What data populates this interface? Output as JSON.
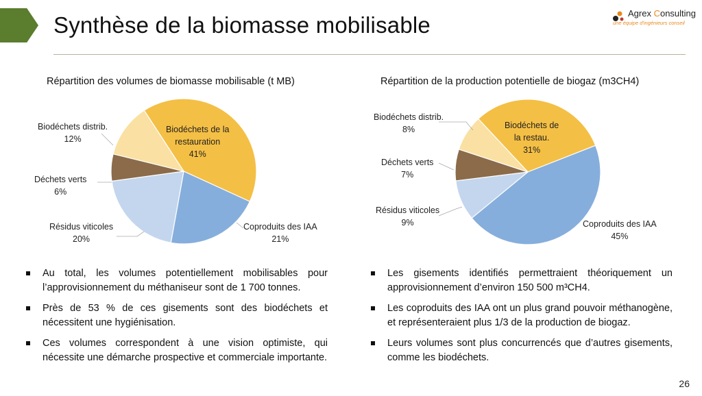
{
  "slide": {
    "title": "Synthèse de la biomasse mobilisable",
    "page_number": "26",
    "logo": {
      "brand_a": "Agrex ",
      "brand_b": "C",
      "brand_c": "onsulting",
      "tagline": "une équipe d'ingénieurs conseil"
    },
    "accent_color": "#5a7d2e"
  },
  "left_chart_labels": [
    {
      "name": "Biodéchets de la",
      "name2": "restauration",
      "pct": "41%"
    },
    {
      "name": "Coproduits des IAA",
      "pct": "21%"
    },
    {
      "name": "Résidus viticoles",
      "pct": "20%"
    },
    {
      "name": "Déchets verts",
      "pct": "6%"
    },
    {
      "name": "Biodéchets distrib.",
      "pct": "12%"
    }
  ],
  "right_chart_labels": [
    {
      "name": "Biodéchets de",
      "name2": "la restau.",
      "pct": "31%"
    },
    {
      "name": "Coproduits des IAA",
      "pct": "45%"
    },
    {
      "name": "Résidus viticoles",
      "pct": "9%"
    },
    {
      "name": "Déchets verts",
      "pct": "7%"
    },
    {
      "name": "Biodéchets distrib.",
      "pct": "8%"
    }
  ],
  "chart_data": [
    {
      "type": "pie",
      "title": "Répartition des volumes de biomasse mobilisable (t MB)",
      "categories": [
        "Biodéchets de la restauration",
        "Coproduits des IAA",
        "Résidus viticoles",
        "Déchets verts",
        "Biodéchets distrib."
      ],
      "values": [
        41,
        21,
        20,
        6,
        12
      ],
      "colors": [
        "#f4bf45",
        "#86aedc",
        "#c3d6ee",
        "#8b6b4a",
        "#fae0a2"
      ]
    },
    {
      "type": "pie",
      "title": "Répartition de la production potentielle de biogaz (m3CH4)",
      "categories": [
        "Biodéchets de la restau.",
        "Coproduits des IAA",
        "Résidus viticoles",
        "Déchets verts",
        "Biodéchets distrib."
      ],
      "values": [
        31,
        45,
        9,
        7,
        8
      ],
      "colors": [
        "#f4bf45",
        "#86aedc",
        "#c3d6ee",
        "#8b6b4a",
        "#fae0a2"
      ]
    }
  ],
  "left_bullets": [
    {
      "pre": "Au total, les volumes potentiellement mobilisables pour l’approvisionnement du méthaniseur sont de ",
      "hl": "1 700 tonnes",
      "post": "."
    },
    {
      "pre": " Près de 53 % de ces gisements sont des biodéchets et nécessitent une ",
      "hl": "hygiénisation",
      "post": "."
    },
    {
      "pre": "Ces volumes correspondent à une vision optimiste, qui nécessite une démarche prospective et commerciale importante.",
      "hl": "",
      "post": ""
    }
  ],
  "right_bullets": [
    {
      "pre": "Les gisements identifiés permettraient théoriquement un approvisionnement d’environ ",
      "hl": "150 500 m³CH4",
      "post": "."
    },
    {
      "pre": "Les coproduits des IAA ont un plus grand pouvoir méthanogène, et représenteraient plus 1/3 de la production de biogaz.",
      "hl": "",
      "post": ""
    },
    {
      "pre": " Leurs volumes sont plus concurrencés que d’autres gisements, comme les biodéchets.",
      "hl": "",
      "post": ""
    }
  ]
}
